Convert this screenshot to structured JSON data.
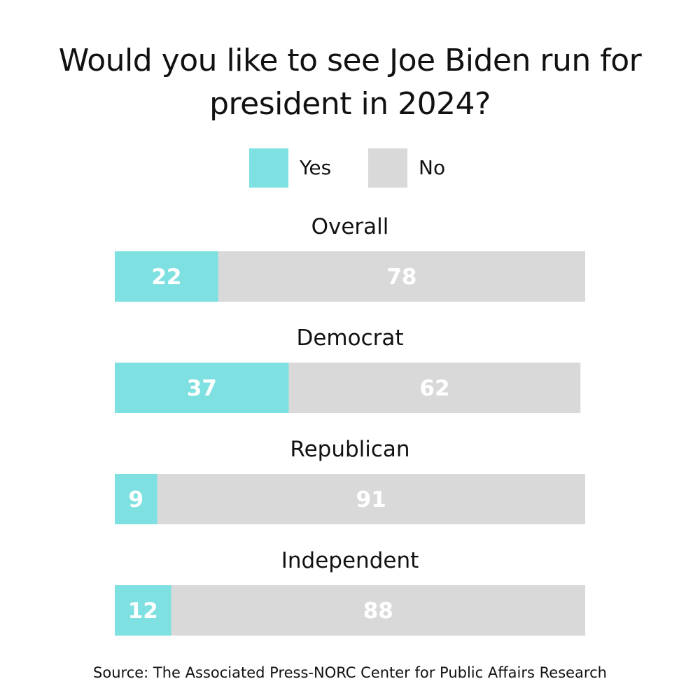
{
  "chart_data": {
    "type": "bar",
    "orientation": "horizontal-stacked",
    "title": "Would you like to see Joe Biden run for president in 2024?",
    "categories": [
      "Overall",
      "Democrat",
      "Republican",
      "Independent"
    ],
    "series": [
      {
        "name": "Yes",
        "color": "#7ee0e0",
        "values": [
          22,
          37,
          9,
          12
        ]
      },
      {
        "name": "No",
        "color": "#d9d9d9",
        "values": [
          78,
          62,
          91,
          88
        ]
      }
    ],
    "xlim": [
      0,
      100
    ],
    "grid": false,
    "legend_position": "top-center",
    "label_color": "#ffffff",
    "source": "Source: The Associated Press-NORC Center for Public Affairs Research"
  }
}
